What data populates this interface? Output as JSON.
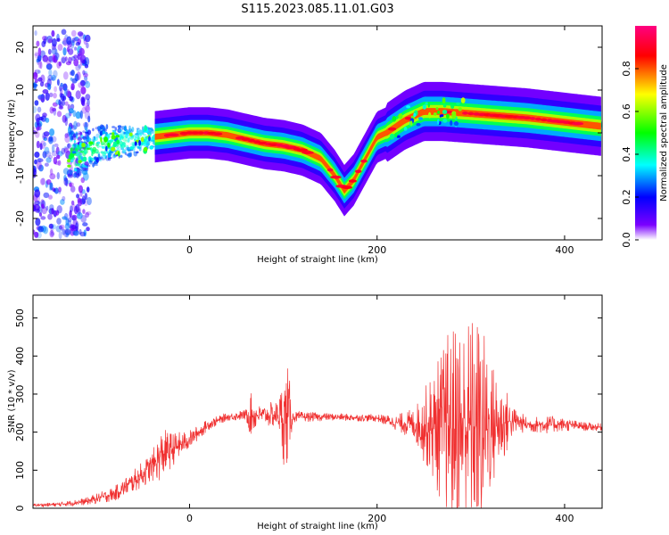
{
  "chart_data": [
    {
      "type": "heatmap",
      "title": "S115.2023.085.11.01.G03",
      "xlabel": "Height of straight line (km)",
      "ylabel": "Frequency (Hz)",
      "xlim": [
        -167,
        440
      ],
      "ylim": [
        -25,
        25
      ],
      "xticks": [
        0,
        200,
        400
      ],
      "yticks": [
        -20,
        -10,
        0,
        10,
        20
      ],
      "ridge": {
        "x": [
          -150,
          -120,
          -100,
          -80,
          -60,
          -40,
          -20,
          0,
          20,
          40,
          60,
          80,
          100,
          120,
          140,
          155,
          165,
          175,
          190,
          200,
          210,
          230,
          250,
          270,
          300,
          330,
          360,
          400,
          440
        ],
        "freq": [
          -5,
          -5,
          -3,
          -2,
          -2,
          -1,
          -0.5,
          0,
          0,
          -0.5,
          -1.5,
          -2.5,
          -3,
          -4,
          -6,
          -10,
          -13.5,
          -11,
          -5,
          -1,
          0,
          3,
          5,
          5,
          4.5,
          4,
          3.5,
          2.5,
          1.5
        ]
      },
      "colorbar": {
        "label": "Normalized spectral amplitude",
        "range": [
          0,
          1
        ],
        "ticks": [
          "0.0",
          "0.2",
          "0.4",
          "0.6",
          "0.8"
        ],
        "colors": [
          "#ffffff",
          "#7b00ff",
          "#0000ff",
          "#00ffff",
          "#00ff00",
          "#ffff00",
          "#ff0000",
          "#ff0080"
        ]
      }
    },
    {
      "type": "line",
      "xlabel": "Height of straight line (km)",
      "ylabel": "SNR (10 * v/v)",
      "xlim": [
        -167,
        440
      ],
      "ylim": [
        0,
        560
      ],
      "xticks": [
        0,
        200,
        400
      ],
      "yticks": [
        0,
        100,
        200,
        300,
        400,
        500
      ],
      "color": "#f03030",
      "envelope": {
        "x": [
          -167,
          -140,
          -110,
          -80,
          -60,
          -40,
          -30,
          -15,
          0,
          20,
          40,
          60,
          65,
          75,
          95,
          100,
          105,
          110,
          150,
          200,
          220,
          240,
          260,
          275,
          290,
          300,
          310,
          320,
          335,
          345,
          360,
          380,
          400,
          420,
          440
        ],
        "base": [
          8,
          10,
          18,
          38,
          70,
          110,
          140,
          160,
          180,
          220,
          240,
          245,
          245,
          245,
          245,
          240,
          240,
          240,
          240,
          237,
          225,
          220,
          215,
          215,
          215,
          215,
          215,
          215,
          225,
          230,
          220,
          220,
          220,
          215,
          213
        ],
        "amp": [
          4,
          6,
          10,
          20,
          30,
          40,
          70,
          40,
          25,
          15,
          10,
          15,
          60,
          25,
          40,
          125,
          140,
          15,
          10,
          10,
          20,
          45,
          150,
          250,
          310,
          300,
          300,
          190,
          110,
          40,
          20,
          25,
          18,
          12,
          10
        ]
      }
    }
  ]
}
